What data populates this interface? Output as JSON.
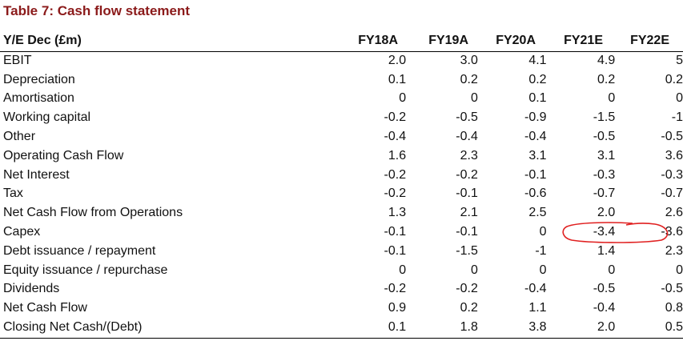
{
  "title": "Table 7: Cash flow statement",
  "header": {
    "label": "Y/E Dec (£m)",
    "columns": [
      "FY18A",
      "FY19A",
      "FY20A",
      "FY21E",
      "FY22E"
    ]
  },
  "rows": [
    {
      "label": "EBIT",
      "values": [
        "2.0",
        "3.0",
        "4.1",
        "4.9",
        "5"
      ]
    },
    {
      "label": "Depreciation",
      "values": [
        "0.1",
        "0.2",
        "0.2",
        "0.2",
        "0.2"
      ]
    },
    {
      "label": "Amortisation",
      "values": [
        "0",
        "0",
        "0.1",
        "0",
        "0"
      ]
    },
    {
      "label": "Working capital",
      "values": [
        "-0.2",
        "-0.5",
        "-0.9",
        "-1.5",
        "-1"
      ]
    },
    {
      "label": "Other",
      "values": [
        "-0.4",
        "-0.4",
        "-0.4",
        "-0.5",
        "-0.5"
      ]
    },
    {
      "label": "Operating Cash Flow",
      "values": [
        "1.6",
        "2.3",
        "3.1",
        "3.1",
        "3.6"
      ]
    },
    {
      "label": "Net Interest",
      "values": [
        "-0.2",
        "-0.2",
        "-0.1",
        "-0.3",
        "-0.3"
      ]
    },
    {
      "label": "Tax",
      "values": [
        "-0.2",
        "-0.1",
        "-0.6",
        "-0.7",
        "-0.7"
      ]
    },
    {
      "label": "Net Cash Flow from Operations",
      "values": [
        "1.3",
        "2.1",
        "2.5",
        "2.0",
        "2.6"
      ]
    },
    {
      "label": "Capex",
      "values": [
        "-0.1",
        "-0.1",
        "0",
        "-3.4",
        "-3.6"
      ]
    },
    {
      "label": "Debt issuance / repayment",
      "values": [
        "-0.1",
        "-1.5",
        "-1",
        "1.4",
        "2.3"
      ]
    },
    {
      "label": "Equity issuance / repurchase",
      "values": [
        "0",
        "0",
        "0",
        "0",
        "0"
      ]
    },
    {
      "label": "Dividends",
      "values": [
        "-0.2",
        "-0.2",
        "-0.4",
        "-0.5",
        "-0.5"
      ]
    },
    {
      "label": "Net Cash Flow",
      "values": [
        "0.9",
        "0.2",
        "1.1",
        "-0.4",
        "0.8"
      ]
    },
    {
      "label": "Closing Net Cash/(Debt)",
      "values": [
        "0.1",
        "1.8",
        "3.8",
        "2.0",
        "0.5"
      ]
    }
  ],
  "colors": {
    "title": "#8b1a1a",
    "annotation": "#e02020"
  }
}
